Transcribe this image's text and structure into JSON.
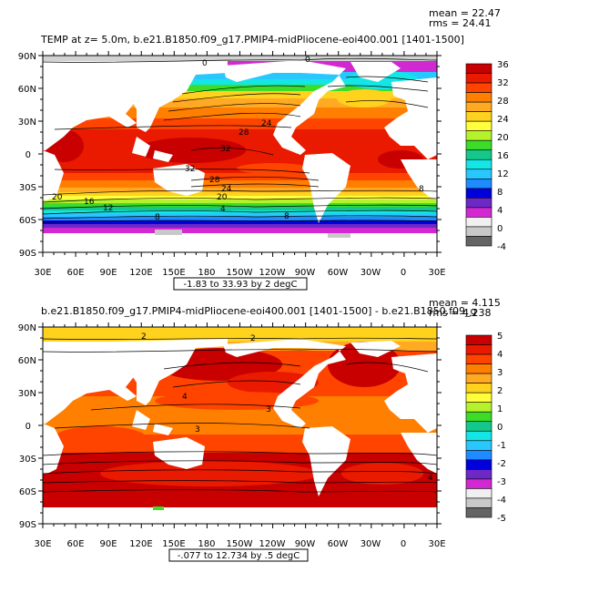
{
  "panels": [
    {
      "title": "TEMP at z=    5.0m, b.e21.B1850.f09_g17.PMIP4-midPliocene-eoi400.001 [1401-1500]",
      "mean": "mean = 22.47",
      "rms": "rms = 24.41",
      "range_label": "-1.83 to 33.93 by 2 degC",
      "lat_labels": [
        "90N",
        "60N",
        "30N",
        "0",
        "30S",
        "60S",
        "90S"
      ],
      "lon_labels": [
        "30E",
        "60E",
        "90E",
        "120E",
        "150E",
        "180",
        "150W",
        "120W",
        "90W",
        "60W",
        "30W",
        "0",
        "30E"
      ],
      "colorbar_labels": [
        "36",
        "32",
        "28",
        "24",
        "20",
        "16",
        "12",
        "8",
        "4",
        "0",
        "-4"
      ],
      "colorbar_colors": [
        "#c80000",
        "#ea1a00",
        "#ff4400",
        "#ff7f00",
        "#ffaa22",
        "#ffd21e",
        "#ffff3c",
        "#b4f22c",
        "#3cdc28",
        "#14c88c",
        "#14e6e6",
        "#28c8ff",
        "#1e8cff",
        "#0000dc",
        "#6e28c8",
        "#d228d2",
        "#f0f0f0",
        "#c8c8c8",
        "#646464"
      ],
      "contour_labels": [
        "0",
        "0",
        "8",
        "24",
        "28",
        "32",
        "32",
        "28",
        "24",
        "20",
        "16",
        "12",
        "20",
        "16",
        "12",
        "8",
        "4",
        "8"
      ]
    },
    {
      "title": "b.e21.B1850.f09_g17.PMIP4-midPliocene-eoi400.001 [1401-1500] - b.e21.B1850.f09_g",
      "mean": "mean = 4.115",
      "rms": "rms = 4.238",
      "range_label": "-.077 to 12.734 by .5 degC",
      "lat_labels": [
        "90N",
        "60N",
        "30N",
        "0",
        "30S",
        "60S",
        "90S"
      ],
      "lon_labels": [
        "30E",
        "60E",
        "90E",
        "120E",
        "150E",
        "180",
        "150W",
        "120W",
        "90W",
        "60W",
        "30W",
        "0",
        "30E"
      ],
      "colorbar_labels": [
        "5",
        "4",
        "3",
        "2",
        "1",
        "0",
        "-1",
        "-2",
        "-3",
        "-4",
        "-5"
      ],
      "colorbar_colors": [
        "#c80000",
        "#ea1a00",
        "#ff4400",
        "#ff7f00",
        "#ffaa22",
        "#ffd21e",
        "#ffff3c",
        "#b4f22c",
        "#3cdc28",
        "#14c88c",
        "#14e6e6",
        "#28c8ff",
        "#1e8cff",
        "#0000dc",
        "#6e28c8",
        "#d228d2",
        "#f0f0f0",
        "#c8c8c8",
        "#646464"
      ],
      "contour_labels": [
        "2",
        "2",
        "4",
        "3",
        "3",
        "4"
      ]
    }
  ],
  "colors": {
    "land": "#ffffff",
    "frame": "#000000"
  }
}
